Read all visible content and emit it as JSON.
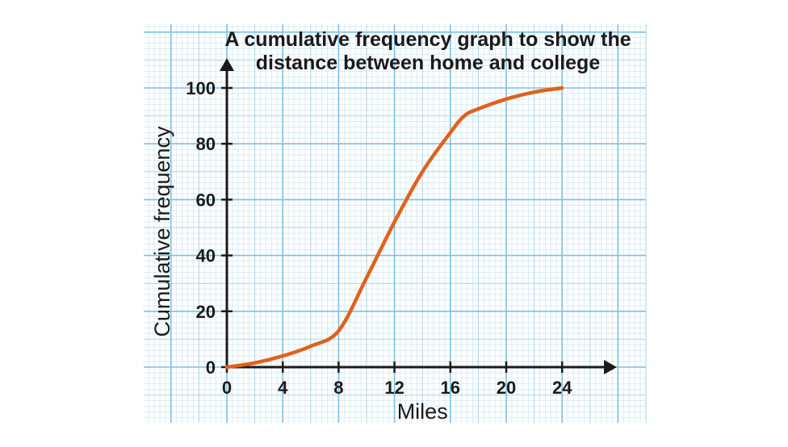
{
  "chart_data": {
    "type": "line",
    "title_lines": [
      "A cumulative frequency graph to show the",
      "distance between home and college"
    ],
    "xlabel": "Miles",
    "ylabel": "Cumulative frequency",
    "xlim": [
      0,
      28
    ],
    "ylim": [
      0,
      100
    ],
    "x_ticks": [
      0,
      4,
      8,
      12,
      16,
      20,
      24
    ],
    "y_ticks": [
      0,
      20,
      40,
      60,
      80,
      100
    ],
    "grid": "graph paper (major every 4 miles / 20 frequency, minor subdivisions)",
    "series": [
      {
        "color": "#e0621c",
        "points": [
          [
            0,
            0
          ],
          [
            2,
            1.5
          ],
          [
            4,
            4
          ],
          [
            6,
            7.5
          ],
          [
            8,
            13
          ],
          [
            10,
            32
          ],
          [
            12,
            52
          ],
          [
            14,
            70
          ],
          [
            16,
            84
          ],
          [
            17,
            90
          ],
          [
            18,
            92.5
          ],
          [
            20,
            96
          ],
          [
            22,
            98.5
          ],
          [
            24,
            100
          ]
        ]
      }
    ]
  },
  "colors": {
    "grid_minor": "#cfe8f6",
    "grid_mid": "#a9d4ee",
    "grid_major": "#7cc0e8",
    "axis": "#1a1a1a",
    "curve": "#e0621c"
  }
}
